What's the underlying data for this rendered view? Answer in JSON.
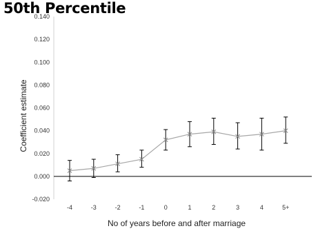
{
  "chart_data": {
    "type": "line",
    "title": "50th Percentile",
    "xlabel": "No of years before and after marriage",
    "ylabel": "Coefficient estimate",
    "categories": [
      "-4",
      "-3",
      "-2",
      "-1",
      "0",
      "1",
      "2",
      "3",
      "4",
      "5+"
    ],
    "y_tick_labels": [
      "-0.020",
      "0.000",
      "0.020",
      "0.040",
      "0.060",
      "0.080",
      "0.100",
      "0.120",
      "0.140"
    ],
    "ylim": [
      -0.02,
      0.14
    ],
    "grid": false,
    "series": [
      {
        "values": [
          0.005,
          0.007,
          0.011,
          0.015,
          0.032,
          0.037,
          0.039,
          0.035,
          0.037,
          0.04
        ],
        "error_low": [
          -0.004,
          -0.001,
          0.004,
          0.008,
          0.023,
          0.026,
          0.028,
          0.024,
          0.023,
          0.029
        ],
        "error_high": [
          0.014,
          0.015,
          0.019,
          0.023,
          0.041,
          0.048,
          0.051,
          0.047,
          0.051,
          0.052
        ],
        "color": "#a6a6a6",
        "marker": "x"
      }
    ],
    "error_bar_color": "#000000",
    "zero_line_color": "#000000"
  }
}
